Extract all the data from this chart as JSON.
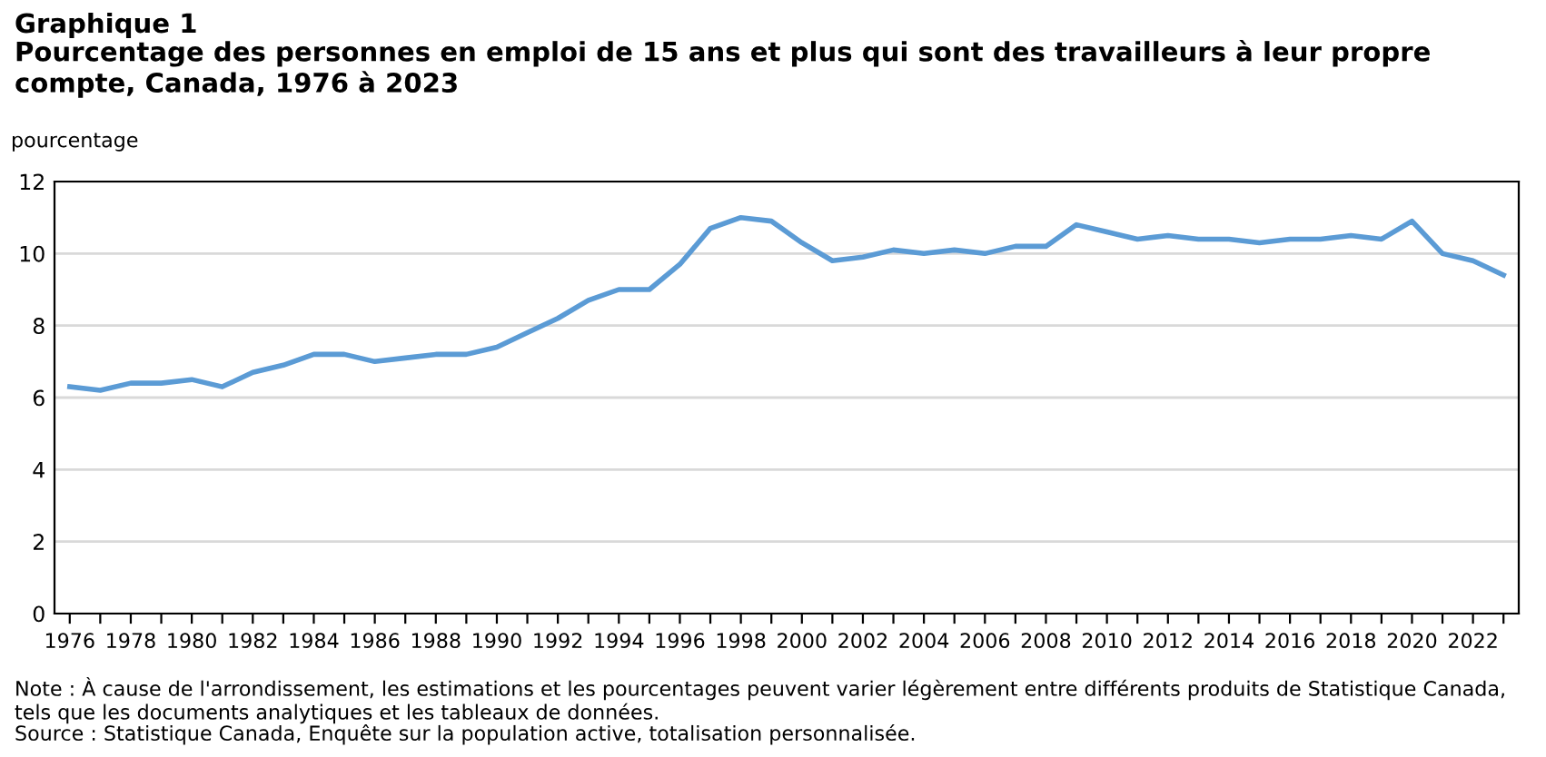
{
  "chart_data": {
    "type": "line",
    "title": "Graphique 1",
    "subtitle": "Pourcentage des personnes en emploi de 15 ans et plus qui sont des travailleurs à leur propre compte, Canada, 1976 à 2023",
    "ylabel": "pourcentage",
    "categories": [
      "1976",
      null,
      "1978",
      null,
      "1980",
      null,
      "1982",
      null,
      "1984",
      null,
      "1986",
      null,
      "1988",
      null,
      "1990",
      null,
      "1992",
      null,
      "1994",
      null,
      "1996",
      null,
      "1998",
      null,
      "2000",
      null,
      "2002",
      null,
      "2004",
      null,
      "2006",
      null,
      "2008",
      null,
      "2010",
      null,
      "2012",
      null,
      "2014",
      null,
      "2016",
      null,
      "2018",
      null,
      "2020",
      null,
      "2022",
      null
    ],
    "series": [
      {
        "color": "#5b9bd5",
        "values": [
          6.3,
          6.2,
          6.4,
          6.4,
          6.5,
          6.3,
          6.7,
          6.9,
          7.2,
          7.2,
          7.0,
          7.1,
          7.2,
          7.2,
          7.4,
          7.8,
          8.2,
          8.7,
          9.0,
          9.0,
          9.7,
          10.7,
          11.0,
          10.9,
          10.3,
          9.8,
          9.9,
          10.1,
          10.0,
          10.1,
          10.0,
          10.2,
          10.2,
          10.8,
          10.6,
          10.4,
          10.5,
          10.4,
          10.4,
          10.3,
          10.4,
          10.4,
          10.5,
          10.4,
          10.9,
          10.0,
          9.8,
          9.4
        ]
      }
    ],
    "ylim": [
      0,
      12
    ],
    "yticks": [
      0,
      2,
      4,
      6,
      8,
      10,
      12
    ],
    "grid": "y",
    "legend": false,
    "marker": "none",
    "line_style": "solid",
    "annotations": [
      "Note : À cause de l'arrondissement, les estimations et les pourcentages peuvent varier légèrement entre différents produits de Statistique Canada, tels que les documents analytiques et les tableaux de données.",
      "Source : Statistique Canada, Enquête sur la population active, totalisation personnalisée."
    ]
  }
}
